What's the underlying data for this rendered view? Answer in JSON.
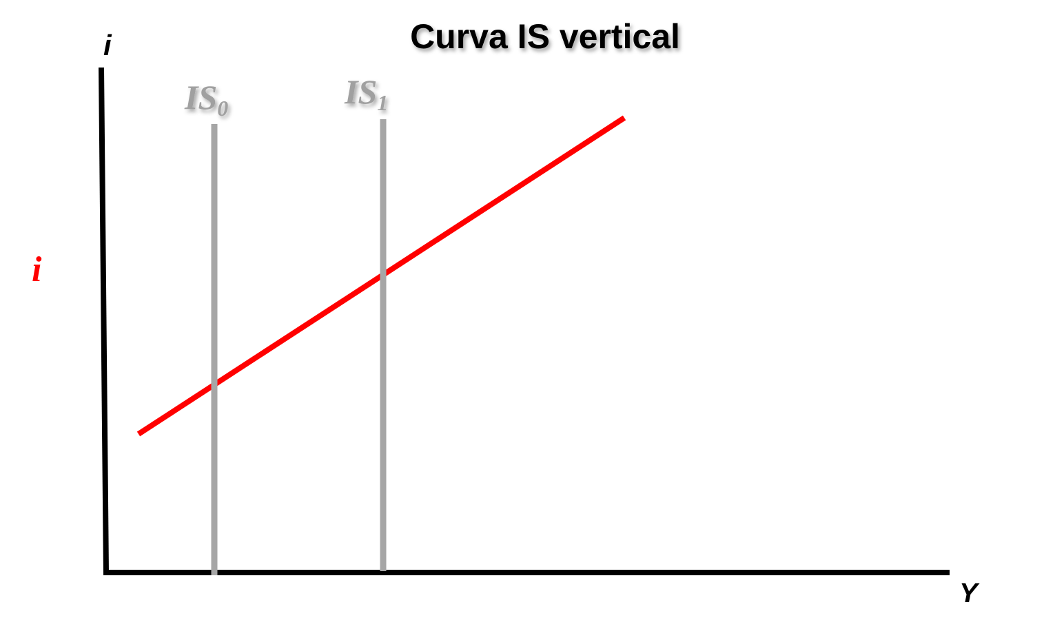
{
  "diagram": {
    "title": "Curva IS vertical",
    "y_axis_label": "i",
    "x_axis_label": "Y",
    "interest_rate_label": "i",
    "curves": [
      {
        "id": "is0",
        "name": "IS",
        "subscript": "0",
        "type": "vertical"
      },
      {
        "id": "is1",
        "name": "IS",
        "subscript": "1",
        "type": "vertical"
      },
      {
        "id": "lm",
        "name": "",
        "type": "upward-sloping"
      }
    ]
  },
  "colors": {
    "axes": "#000000",
    "is_curves": "#a6a6a6",
    "is_labels": "#a0a0a0",
    "lm_curve": "#ff0000",
    "interest_rate_label": "#ff0000",
    "background": "#ffffff"
  }
}
